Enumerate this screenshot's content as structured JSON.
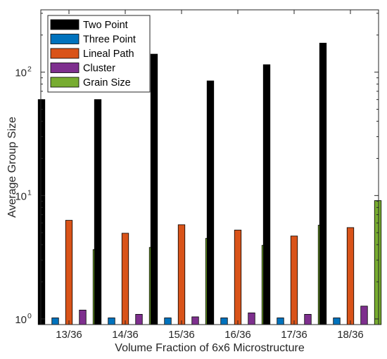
{
  "chart_data": {
    "type": "bar",
    "xlabel": "Volume Fraction of 6x6 Microstructure",
    "ylabel": "Average Group Size",
    "yscale": "log",
    "ylim": [
      0.9,
      320
    ],
    "yticks": [
      {
        "value": 1,
        "base": "10",
        "exp": "0"
      },
      {
        "value": 10,
        "base": "10",
        "exp": "1"
      },
      {
        "value": 100,
        "base": "10",
        "exp": "2"
      }
    ],
    "categories": [
      "13/36",
      "14/36",
      "15/36",
      "16/36",
      "17/36",
      "18/36"
    ],
    "series": [
      {
        "name": "Two Point",
        "color": "#000000",
        "values": [
          60,
          60,
          140,
          85,
          115,
          172
        ]
      },
      {
        "name": "Three Point",
        "color": "#0072bd",
        "values": [
          1.02,
          1.02,
          1.02,
          1.02,
          1.02,
          1.02
        ]
      },
      {
        "name": "Lineal Path",
        "color": "#d95319",
        "values": [
          6.3,
          4.95,
          5.8,
          5.25,
          4.7,
          5.5
        ]
      },
      {
        "name": "Cluster",
        "color": "#7e2f8e",
        "values": [
          1.18,
          1.09,
          1.04,
          1.12,
          1.09,
          1.27
        ]
      },
      {
        "name": "Grain Size",
        "color": "#77ac30",
        "values": [
          3.65,
          3.8,
          4.5,
          3.95,
          5.75,
          9.1
        ]
      }
    ],
    "legend": "top-left",
    "grid": false
  }
}
